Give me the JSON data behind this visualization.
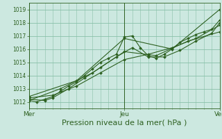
{
  "title": "",
  "xlabel": "Pression niveau de la mer( hPa )",
  "ylabel": "",
  "background_color": "#cce8e0",
  "plot_bg_color": "#cce8e0",
  "grid_color": "#88c0a8",
  "line_color": "#2d6020",
  "xlim": [
    0,
    48
  ],
  "ylim": [
    1011.5,
    1019.5
  ],
  "yticks": [
    1012,
    1013,
    1014,
    1015,
    1016,
    1017,
    1018,
    1019
  ],
  "xtick_labels": [
    "Mer",
    "Jeu",
    "Ven"
  ],
  "xtick_pos": [
    0,
    24,
    48
  ],
  "series": [
    [
      0.0,
      1012.1,
      2.0,
      1012.0,
      4.0,
      1012.2,
      6.0,
      1012.4,
      8.0,
      1012.8,
      10.0,
      1013.2,
      12.0,
      1013.5,
      14.0,
      1014.0,
      16.0,
      1014.5,
      18.0,
      1015.0,
      20.0,
      1015.3,
      22.0,
      1015.6,
      24.0,
      1016.9,
      26.0,
      1017.0,
      28.0,
      1016.1,
      30.0,
      1015.5,
      32.0,
      1015.3,
      34.0,
      1015.6,
      36.0,
      1016.0,
      38.0,
      1016.5,
      40.0,
      1016.8,
      42.0,
      1017.1,
      44.0,
      1017.3,
      46.0,
      1017.5,
      48.0,
      1018.2
    ],
    [
      0.0,
      1012.2,
      4.0,
      1012.1,
      6.0,
      1012.3,
      10.0,
      1013.0,
      14.0,
      1013.8,
      18.0,
      1014.6,
      22.0,
      1015.4,
      26.0,
      1016.1,
      30.0,
      1015.4,
      34.0,
      1015.4,
      38.0,
      1015.9,
      42.0,
      1016.6,
      46.0,
      1017.2,
      48.0,
      1018.0
    ],
    [
      0.0,
      1012.3,
      6.0,
      1012.5,
      12.0,
      1013.2,
      18.0,
      1014.2,
      24.0,
      1015.2,
      30.0,
      1015.6,
      36.0,
      1016.1,
      42.0,
      1016.8,
      48.0,
      1017.8
    ],
    [
      0.0,
      1012.1,
      8.0,
      1013.0,
      16.0,
      1014.2,
      24.0,
      1015.8,
      32.0,
      1015.5,
      40.0,
      1016.6,
      48.0,
      1017.3
    ],
    [
      0.0,
      1012.4,
      12.0,
      1013.6,
      24.0,
      1016.8,
      36.0,
      1016.0,
      48.0,
      1019.0
    ]
  ],
  "marker": "D",
  "marker_size": 2.0,
  "linewidth": 0.8,
  "xlabel_fontsize": 8,
  "ytick_fontsize": 5.5,
  "xtick_fontsize": 6.5
}
